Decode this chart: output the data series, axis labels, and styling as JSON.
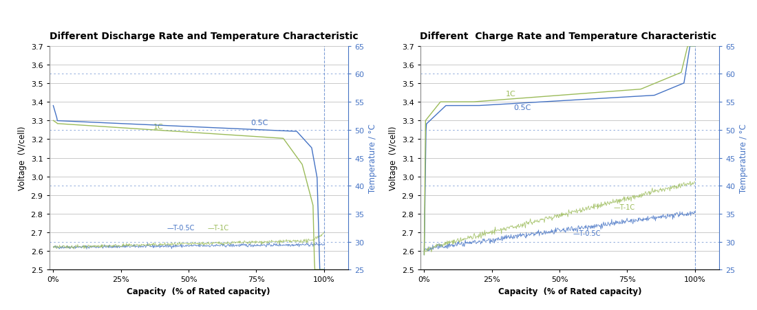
{
  "discharge": {
    "title": "Different Discharge Rate and Temperature Characteristic",
    "xlabel": "Capacity  (% of Rated capacity)",
    "ylabel_left": "Voltage  (V/cell)",
    "ylabel_right": "Temperature / °C",
    "ylim_left": [
      2.5,
      3.7
    ],
    "ylim_right": [
      25,
      65
    ],
    "yticks_left": [
      2.5,
      2.6,
      2.7,
      2.8,
      2.9,
      3.0,
      3.1,
      3.2,
      3.3,
      3.4,
      3.5,
      3.6,
      3.7
    ],
    "yticks_right": [
      25,
      30,
      35,
      40,
      45,
      50,
      55,
      60,
      65
    ],
    "temp_dotted_lines": [
      30,
      40,
      50,
      60
    ],
    "label_05C": "0.5C",
    "label_1C": "1C",
    "label_T05C": "T-0.5C",
    "label_T1C": "T-1C",
    "line_color_05C": "#4472C4",
    "line_color_1C": "#9BBB59",
    "temp_color": "#4472C4"
  },
  "charge": {
    "title": "Different  Charge Rate and Temperature Characteristic",
    "xlabel": "Capacity  (% of Rated capacity)",
    "ylabel_left": "Voltage  (V/cell)",
    "ylabel_right": "Temperature / °C",
    "ylim_left": [
      2.5,
      3.7
    ],
    "ylim_right": [
      25,
      65
    ],
    "yticks_left": [
      2.5,
      2.6,
      2.7,
      2.8,
      2.9,
      3.0,
      3.1,
      3.2,
      3.3,
      3.4,
      3.5,
      3.6,
      3.7
    ],
    "yticks_right": [
      25,
      30,
      35,
      40,
      45,
      50,
      55,
      60,
      65
    ],
    "temp_dotted_lines": [
      30,
      40,
      50,
      60
    ],
    "label_05C": "0.5C",
    "label_1C": "1C",
    "label_T05C": "T-0.5C",
    "label_T1C": "T-1C",
    "line_color_05C": "#4472C4",
    "line_color_1C": "#9BBB59",
    "temp_color": "#4472C4"
  },
  "bg_color": "#FFFFFF",
  "grid_color_solid": "#C0C0C0",
  "title_fontsize": 10,
  "axis_label_fontsize": 8.5,
  "tick_fontsize": 8,
  "annotation_fontsize": 8
}
